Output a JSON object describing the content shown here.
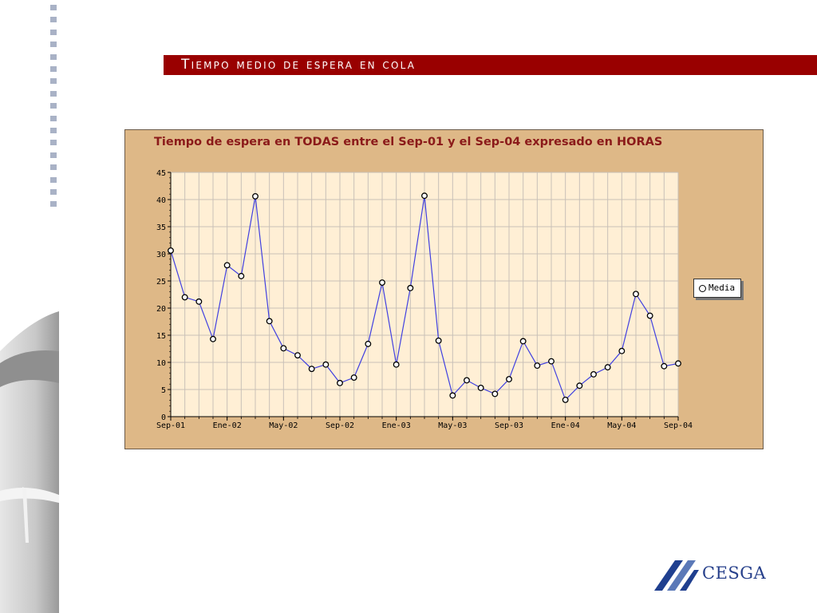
{
  "slide": {
    "title": "Tiempo medio de espera en cola"
  },
  "colors": {
    "banner": "#990000",
    "panel": "#deb887",
    "plot_bg": "#ffefd5",
    "line": "#4040e0",
    "title_text": "#8b1a1a"
  },
  "logo": {
    "text": "CESGA"
  },
  "chart_data": {
    "type": "line",
    "title": "Tiempo de espera en TODAS entre el Sep-01 y el Sep-04 expresado en HORAS",
    "xlabel": "",
    "ylabel": "",
    "ylim": [
      0,
      45
    ],
    "yticks": [
      0,
      5,
      10,
      15,
      20,
      25,
      30,
      35,
      40,
      45
    ],
    "x_tick_labels": [
      "Sep-01",
      "Ene-02",
      "May-02",
      "Sep-02",
      "Ene-03",
      "May-03",
      "Sep-03",
      "Ene-04",
      "May-04",
      "Sep-04"
    ],
    "x_tick_every": 4,
    "grid": true,
    "legend": "right",
    "series": [
      {
        "name": "Media",
        "values": [
          30.6,
          22.0,
          21.2,
          14.3,
          27.9,
          25.9,
          40.6,
          17.6,
          12.6,
          11.3,
          8.8,
          9.6,
          6.2,
          7.2,
          13.4,
          24.7,
          9.6,
          23.7,
          40.7,
          14.0,
          3.9,
          6.7,
          5.3,
          4.2,
          6.9,
          13.9,
          9.4,
          10.2,
          3.1,
          5.7,
          7.8,
          9.1,
          12.1,
          22.6,
          18.6,
          9.3,
          9.8
        ]
      }
    ]
  }
}
